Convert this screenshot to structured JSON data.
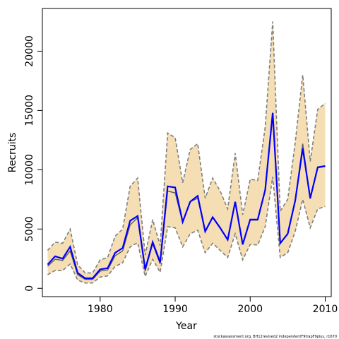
{
  "chart_data": {
    "type": "line",
    "xlabel": "Year",
    "ylabel": "Recruits",
    "xlim": [
      1972.3,
      2010.8
    ],
    "ylim": [
      -700,
      23600
    ],
    "x_ticks": [
      1980,
      1990,
      2000,
      2010
    ],
    "y_ticks": [
      0,
      5000,
      10000,
      15000,
      20000
    ],
    "grid": false,
    "legend": "none",
    "colors": {
      "band_fill": "#f5deb3",
      "band_edge": "#7f7f7f",
      "estimate": "#0000ff",
      "secondary": "#555555"
    },
    "x": [
      1973,
      1974,
      1975,
      1976,
      1977,
      1978,
      1979,
      1980,
      1981,
      1982,
      1983,
      1984,
      1985,
      1986,
      1987,
      1988,
      1989,
      1990,
      1991,
      1992,
      1993,
      1994,
      1995,
      1996,
      1997,
      1998,
      1999,
      2000,
      2001,
      2002,
      2003,
      2004,
      2005,
      2006,
      2007,
      2008,
      2009,
      2010
    ],
    "series": [
      {
        "role": "estimate",
        "values": [
          2000,
          2700,
          2500,
          3500,
          1300,
          850,
          850,
          1600,
          1700,
          3000,
          3400,
          5700,
          6100,
          1600,
          3900,
          2200,
          8600,
          8500,
          5600,
          7300,
          7800,
          4800,
          6000,
          5100,
          4100,
          7300,
          3700,
          5800,
          5800,
          8300,
          14800,
          3800,
          4600,
          7400,
          11800,
          7600,
          10200,
          10300
        ]
      },
      {
        "role": "secondary",
        "values": [
          1850,
          2450,
          2350,
          3150,
          1150,
          750,
          750,
          1450,
          1550,
          2750,
          3150,
          5350,
          5950,
          1450,
          3750,
          2050,
          8200,
          8050,
          5550,
          7300,
          7600,
          4800,
          5950,
          5050,
          4100,
          7250,
          3700,
          5750,
          5750,
          8250,
          14700,
          3800,
          4550,
          7350,
          12200,
          7550,
          10250,
          10350
        ]
      },
      {
        "role": "upper",
        "values": [
          3200,
          3900,
          3800,
          5000,
          2000,
          1300,
          1300,
          2400,
          2600,
          4400,
          5000,
          8600,
          9300,
          2800,
          5800,
          3600,
          13100,
          12700,
          8900,
          11700,
          12200,
          7600,
          9300,
          8200,
          6700,
          11400,
          6200,
          9200,
          9100,
          13600,
          22500,
          6500,
          7500,
          12300,
          18000,
          10700,
          15100,
          15600
        ]
      },
      {
        "role": "lower",
        "values": [
          1150,
          1500,
          1500,
          2050,
          700,
          450,
          450,
          950,
          1050,
          1850,
          2150,
          3500,
          3850,
          1000,
          2450,
          1350,
          5200,
          5100,
          3500,
          4600,
          4900,
          3000,
          3800,
          3200,
          2600,
          4600,
          2400,
          3700,
          3650,
          5200,
          9400,
          2600,
          3000,
          4800,
          7500,
          5100,
          6700,
          6900
        ]
      }
    ],
    "footnote": "stockassessment.org, BH12revised2 independentF9trapF9plus, r1670"
  }
}
